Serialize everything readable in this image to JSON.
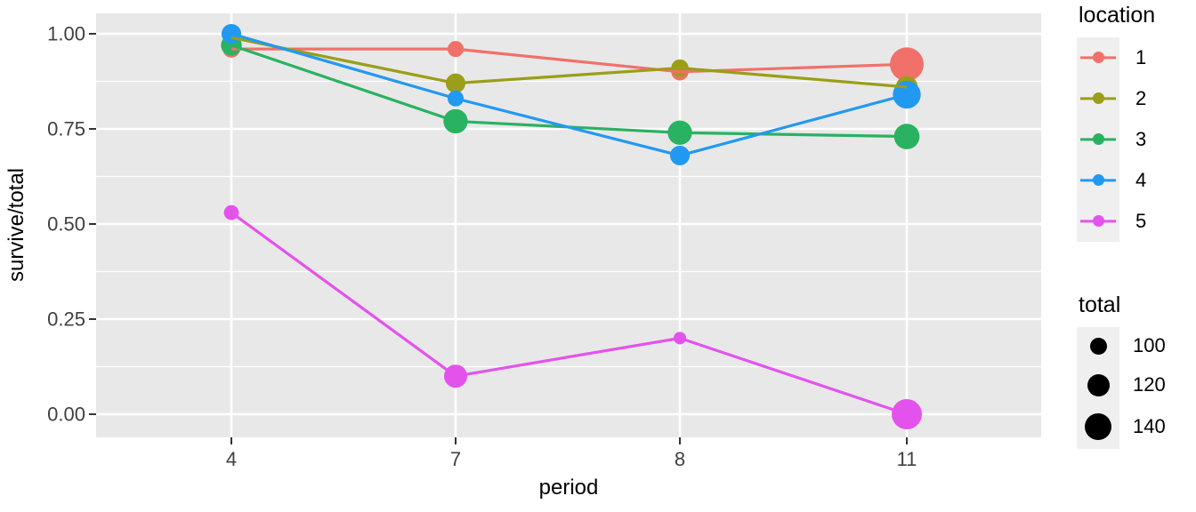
{
  "chart_data": {
    "type": "line",
    "variant": "bubble-line (ggplot style, point size mapped to total)",
    "title": "",
    "xlabel": "period",
    "ylabel": "survive/total",
    "x_categories": [
      4,
      7,
      8,
      11
    ],
    "x_tick_labels": [
      "4",
      "7",
      "8",
      "11"
    ],
    "y_tick_labels": [
      "0.00",
      "0.25",
      "0.50",
      "0.75",
      "1.00"
    ],
    "y_tick_values": [
      0,
      0.25,
      0.5,
      0.75,
      1
    ],
    "ylim": [
      0,
      1
    ],
    "grid": {
      "major": true,
      "minor": true,
      "color": "#FFFFFF"
    },
    "series": [
      {
        "location": "1",
        "color": "#F1706A",
        "ratios": [
          0.96,
          0.96,
          0.9,
          0.92
        ],
        "totals": [
          100,
          95,
          100,
          170
        ]
      },
      {
        "location": "2",
        "color": "#9A9E18",
        "ratios": [
          0.99,
          0.87,
          0.91,
          0.86
        ],
        "totals": [
          100,
          110,
          100,
          120
        ]
      },
      {
        "location": "3",
        "color": "#29B261",
        "ratios": [
          0.97,
          0.77,
          0.74,
          0.73
        ],
        "totals": [
          115,
          130,
          130,
          135
        ]
      },
      {
        "location": "4",
        "color": "#2299F0",
        "ratios": [
          1.0,
          0.83,
          0.68,
          0.84
        ],
        "totals": [
          110,
          95,
          110,
          145
        ]
      },
      {
        "location": "5",
        "color": "#E353EC",
        "ratios": [
          0.53,
          0.1,
          0.2,
          0.0
        ],
        "totals": [
          90,
          125,
          80,
          155
        ]
      }
    ],
    "legend_location": {
      "title": "location",
      "entries": [
        "1",
        "2",
        "3",
        "4",
        "5"
      ]
    },
    "legend_total": {
      "title": "total",
      "entries": [
        {
          "label": "100",
          "value": 100
        },
        {
          "label": "120",
          "value": 120
        },
        {
          "label": "140",
          "value": 140
        }
      ]
    },
    "colors": {
      "panel_bg": "#E8E8E8",
      "grid": "#FFFFFF",
      "tick_mark": "#333333",
      "tick_text": "#404040",
      "axis_title_text": "#000000",
      "legend_key_bg": "#EFEFEF",
      "legend_point": "#000000"
    }
  }
}
